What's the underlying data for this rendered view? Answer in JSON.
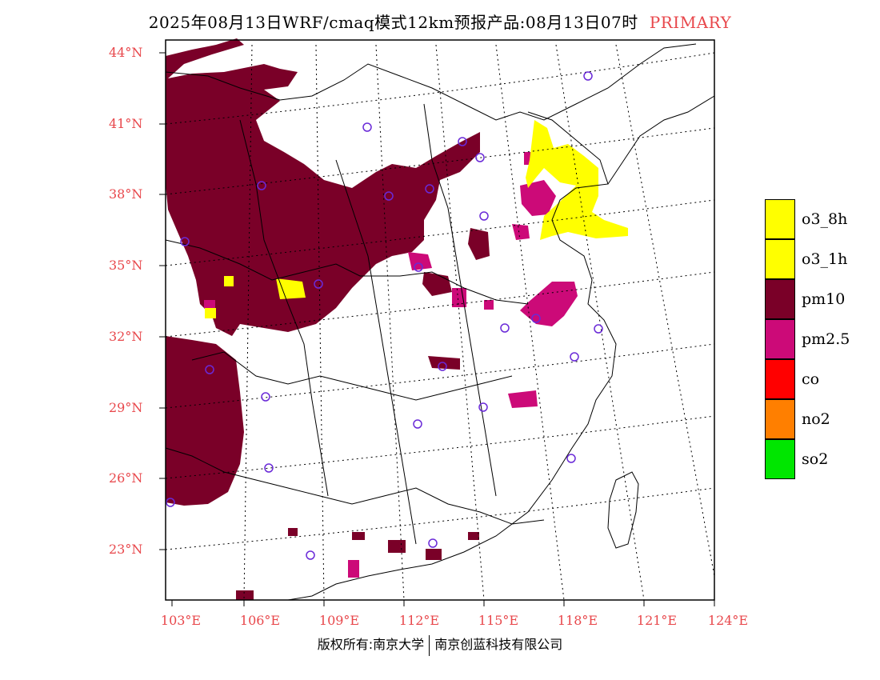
{
  "header": {
    "title": "2025年08月13日WRF/cmaq模式12km预报产品:08月13日07时",
    "tag": "PRIMARY"
  },
  "axes": {
    "lat_labels": [
      "44°N",
      "41°N",
      "38°N",
      "35°N",
      "32°N",
      "29°N",
      "26°N",
      "23°N"
    ],
    "lon_labels": [
      "103°E",
      "106°E",
      "109°E",
      "112°E",
      "115°E",
      "118°E",
      "121°E",
      "124°E"
    ]
  },
  "legend": {
    "items": [
      {
        "label": "o3_8h",
        "color": "#ffff00"
      },
      {
        "label": "o3_1h",
        "color": "#ffff00"
      },
      {
        "label": "pm10",
        "color": "#7a0028"
      },
      {
        "label": "pm2.5",
        "color": "#cc0a78"
      },
      {
        "label": "co",
        "color": "#ff0000"
      },
      {
        "label": "no2",
        "color": "#ff7f00"
      },
      {
        "label": "so2",
        "color": "#00e600"
      }
    ]
  },
  "footer": {
    "left": "版权所有:南京大学",
    "right": "南京创蓝科技有限公司"
  }
}
